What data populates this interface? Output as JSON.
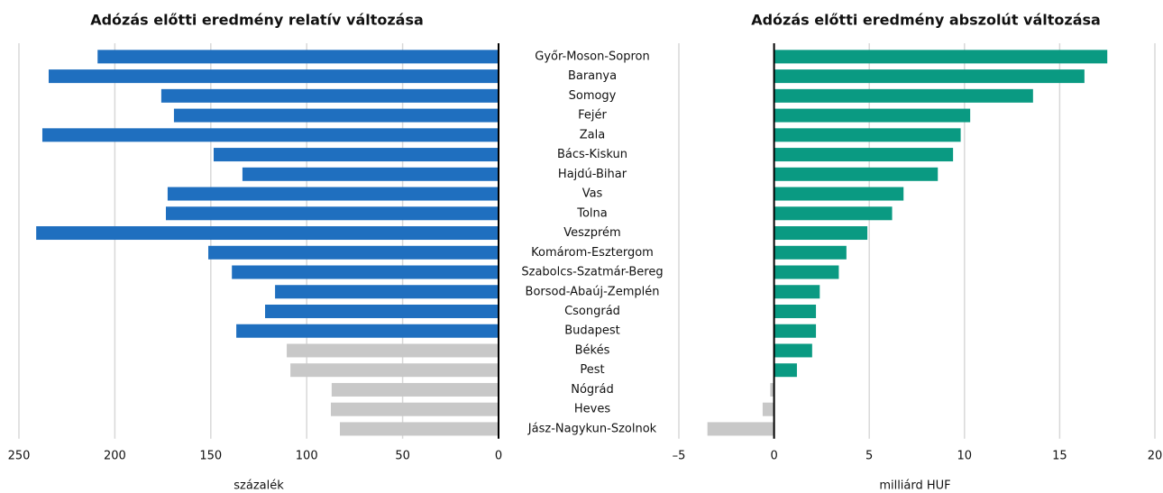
{
  "chart_data": [
    {
      "type": "bar",
      "orientation": "horizontal",
      "title": "Adózás előtti eredmény relatív változása",
      "xlabel": "százalék",
      "categories": [
        "Győr-Moson-Sopron",
        "Baranya",
        "Somogy",
        "Fejér",
        "Zala",
        "Bács-Kiskun",
        "Hajdú-Bihar",
        "Vas",
        "Tolna",
        "Veszprém",
        "Komárom-Esztergom",
        "Szabolcs-Szatmár-Bereg",
        "Borsod-Abaúj-Zemplén",
        "Csongrád",
        "Budapest",
        "Békés",
        "Pest",
        "Nógrád",
        "Heves",
        "Jász-Nagykun-Szolnok"
      ],
      "values": [
        209,
        234.5,
        175.8,
        169.2,
        237.8,
        148.5,
        133.5,
        172.5,
        173.4,
        241,
        151.3,
        139,
        116.5,
        121.7,
        136.7,
        110.4,
        108.5,
        87,
        87.4,
        82.7
      ],
      "colors": [
        "#1f6fbf",
        "#1f6fbf",
        "#1f6fbf",
        "#1f6fbf",
        "#1f6fbf",
        "#1f6fbf",
        "#1f6fbf",
        "#1f6fbf",
        "#1f6fbf",
        "#1f6fbf",
        "#1f6fbf",
        "#1f6fbf",
        "#1f6fbf",
        "#1f6fbf",
        "#1f6fbf",
        "#c8c8c8",
        "#c8c8c8",
        "#c8c8c8",
        "#c8c8c8",
        "#c8c8c8"
      ],
      "xlim": [
        250,
        0
      ],
      "xticks": [
        250,
        200,
        150,
        100,
        50,
        0
      ],
      "grid": true
    },
    {
      "type": "bar",
      "orientation": "horizontal",
      "title": "Adózás előtti eredmény abszolút változása",
      "xlabel": "milliárd HUF",
      "values": [
        17.5,
        16.3,
        13.6,
        10.3,
        9.8,
        9.4,
        8.6,
        6.8,
        6.2,
        4.9,
        3.8,
        3.4,
        2.4,
        2.2,
        2.2,
        2.0,
        1.2,
        -0.2,
        -0.6,
        -3.5
      ],
      "colors": [
        "#0a9a82",
        "#0a9a82",
        "#0a9a82",
        "#0a9a82",
        "#0a9a82",
        "#0a9a82",
        "#0a9a82",
        "#0a9a82",
        "#0a9a82",
        "#0a9a82",
        "#0a9a82",
        "#0a9a82",
        "#0a9a82",
        "#0a9a82",
        "#0a9a82",
        "#0a9a82",
        "#0a9a82",
        "#c8c8c8",
        "#c8c8c8",
        "#c8c8c8"
      ],
      "xlim": [
        -5,
        20
      ],
      "xticks": [
        {
          "value": -5,
          "label": "–5"
        },
        0,
        5,
        10,
        15,
        20
      ],
      "grid": true
    }
  ]
}
